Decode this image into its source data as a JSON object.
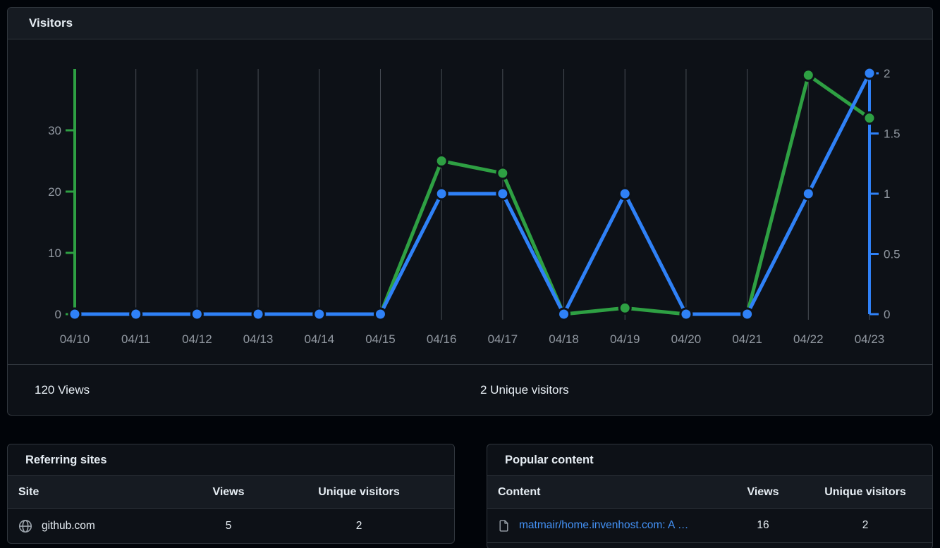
{
  "visitors_card": {
    "title": "Visitors",
    "footer": {
      "views_total": "120 Views",
      "unique_total": "2 Unique visitors"
    }
  },
  "chart_data": {
    "type": "line",
    "title": "Visitors",
    "x": [
      "04/10",
      "04/11",
      "04/12",
      "04/13",
      "04/14",
      "04/15",
      "04/16",
      "04/17",
      "04/18",
      "04/19",
      "04/20",
      "04/21",
      "04/22",
      "04/23"
    ],
    "series": [
      {
        "name": "Views",
        "axis": "left",
        "color": "#2ea043",
        "values": [
          0,
          0,
          0,
          0,
          0,
          0,
          25,
          23,
          0,
          1,
          0,
          0,
          39,
          32
        ]
      },
      {
        "name": "Unique visitors",
        "axis": "right",
        "color": "#2f81f7",
        "values": [
          0,
          0,
          0,
          0,
          0,
          0,
          1,
          1,
          0,
          1,
          0,
          0,
          1,
          2
        ]
      }
    ],
    "left_axis": {
      "ticks": [
        0,
        10,
        20,
        30
      ],
      "max": 40,
      "color": "#2ea043"
    },
    "right_axis": {
      "ticks": [
        0,
        0.5,
        1,
        1.5,
        2
      ],
      "max": 2,
      "color": "#2f81f7"
    },
    "grid": true,
    "legend": "none",
    "colors": {
      "gridline": "#474d55",
      "tick_label": "#9198a1",
      "plot_bg": "#0d1117"
    }
  },
  "referring_sites": {
    "title": "Referring sites",
    "columns": [
      "Site",
      "Views",
      "Unique visitors"
    ],
    "rows": [
      {
        "site": "github.com",
        "views": "5",
        "unique": "2"
      }
    ]
  },
  "popular_content": {
    "title": "Popular content",
    "columns": [
      "Content",
      "Views",
      "Unique visitors"
    ],
    "rows": [
      {
        "content": "matmair/home.invenhost.com: A …",
        "views": "16",
        "unique": "2"
      }
    ]
  }
}
